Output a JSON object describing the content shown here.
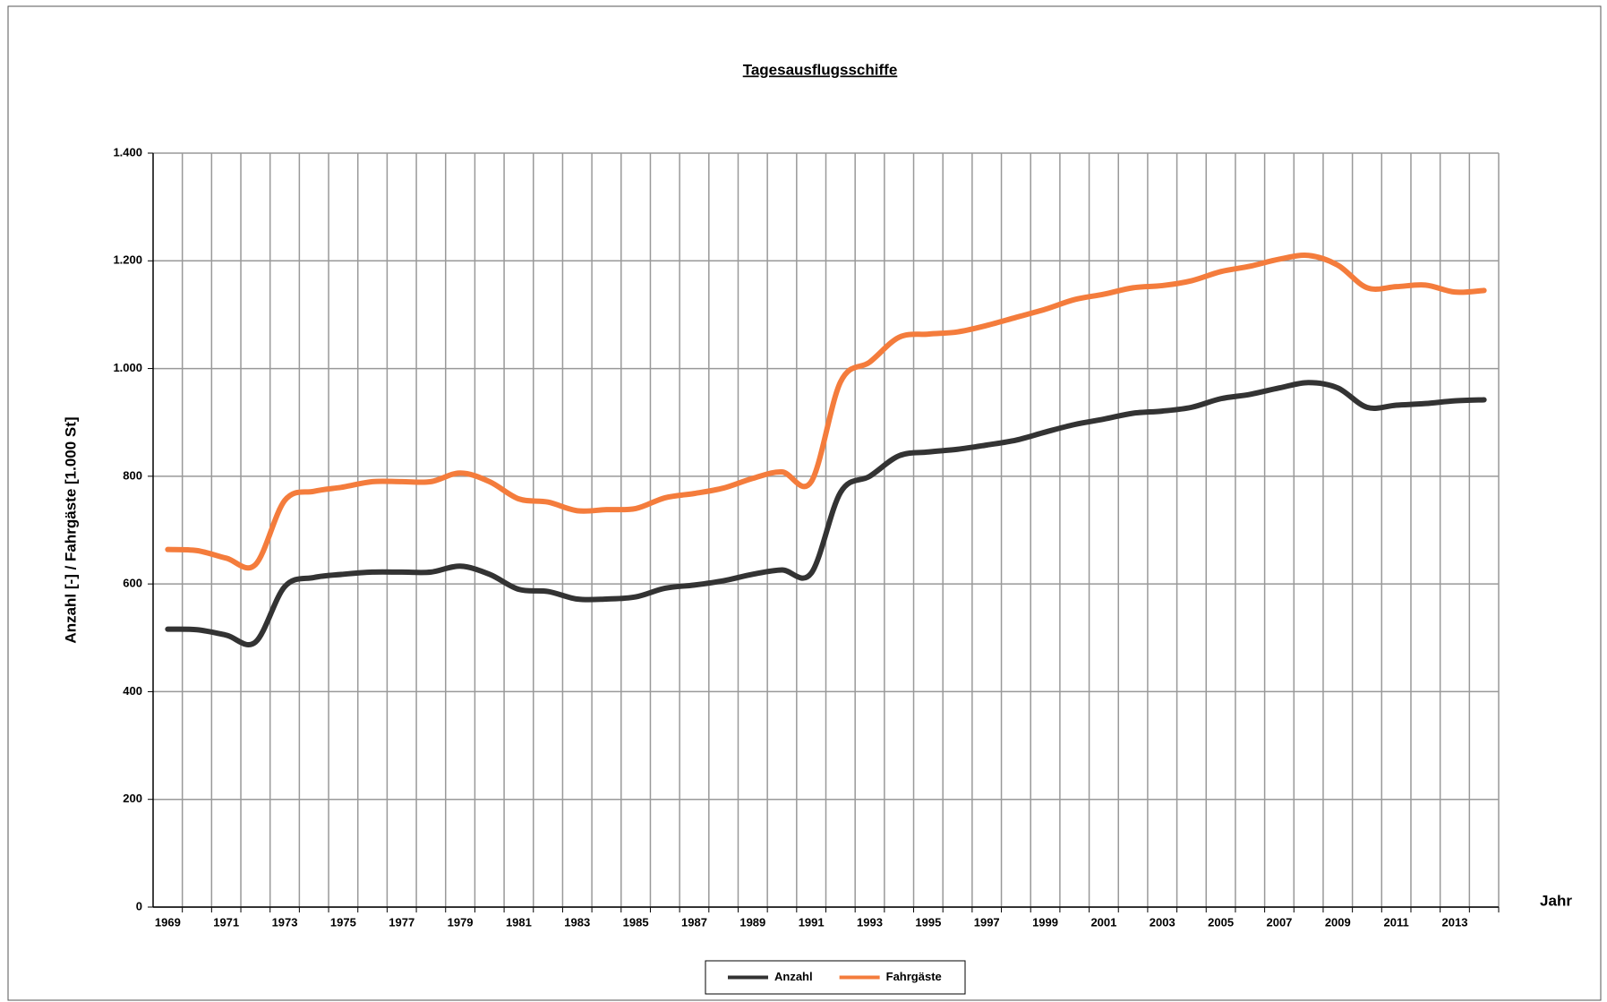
{
  "chart_data": {
    "type": "line",
    "title": "Tagesausflugsschiffe",
    "y_label": "Anzahl [-] / Fahrgäste [1.000 St]",
    "x_label": "Jahr",
    "categories": [
      "1969",
      null,
      "1971",
      null,
      "1973",
      null,
      "1975",
      null,
      "1977",
      null,
      "1979",
      null,
      "1981",
      null,
      "1983",
      null,
      "1985",
      null,
      "1987",
      null,
      "1989",
      null,
      "1991",
      null,
      "1993",
      null,
      "1995",
      null,
      "1997",
      null,
      "1999",
      null,
      "2001",
      null,
      "2003",
      null,
      "2005",
      null,
      "2007",
      null,
      "2009",
      null,
      "2011",
      null,
      "2013",
      null
    ],
    "series": [
      {
        "name": "Anzahl",
        "color": "#333333",
        "values": [
          516,
          515,
          505,
          492,
          595,
          612,
          618,
          622,
          622,
          622,
          633,
          618,
          590,
          586,
          572,
          572,
          576,
          592,
          598,
          606,
          618,
          626,
          620,
          770,
          800,
          838,
          845,
          850,
          858,
          867,
          882,
          896,
          906,
          917,
          921,
          928,
          944,
          952,
          964,
          974,
          964,
          928,
          932,
          935,
          940,
          942
        ]
      },
      {
        "name": "Fahrgäste",
        "color": "#f47c3c",
        "values": [
          664,
          662,
          648,
          636,
          755,
          772,
          780,
          790,
          790,
          790,
          806,
          790,
          758,
          752,
          736,
          738,
          740,
          760,
          768,
          778,
          796,
          808,
          790,
          975,
          1012,
          1058,
          1064,
          1068,
          1080,
          1095,
          1110,
          1128,
          1138,
          1150,
          1154,
          1163,
          1180,
          1190,
          1203,
          1210,
          1192,
          1150,
          1152,
          1155,
          1142,
          1145
        ]
      }
    ],
    "ylim": [
      0,
      1400
    ],
    "yticks": [
      0,
      200,
      400,
      600,
      800,
      {
        "value": 1000,
        "label": "1.000"
      },
      {
        "value": 1200,
        "label": "1.200"
      },
      {
        "value": 1400,
        "label": "1.400"
      }
    ],
    "grid": true,
    "legend": "bottom"
  }
}
